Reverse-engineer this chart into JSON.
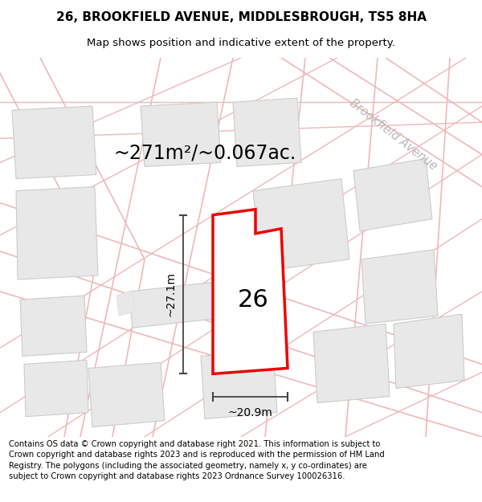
{
  "title_line1": "26, BROOKFIELD AVENUE, MIDDLESBROUGH, TS5 8HA",
  "title_line2": "Map shows position and indicative extent of the property.",
  "area_text": "~271m²/~0.067ac.",
  "label_26": "26",
  "dim_vertical": "~27.1m",
  "dim_horizontal": "~20.9m",
  "street_label": "Brookfield Avenue",
  "footer_text": "Contains OS data © Crown copyright and database right 2021. This information is subject to Crown copyright and database rights 2023 and is reproduced with the permission of HM Land Registry. The polygons (including the associated geometry, namely x, y co-ordinates) are subject to Crown copyright and database rights 2023 Ordnance Survey 100026316.",
  "bg_color": "#ffffff",
  "map_bg_color": "#ffffff",
  "building_fill": "#e8e8e8",
  "building_edge": "#cccccc",
  "highlight_fill": "#ffffff",
  "highlight_edge": "#ee0000",
  "road_line_color": "#f0b8b8",
  "street_label_color": "#b8b8b8",
  "dim_color": "#444444",
  "title_fontsize": 11,
  "subtitle_fontsize": 9.5,
  "area_fontsize": 17,
  "label_fontsize": 22,
  "dim_fontsize": 10,
  "street_fontsize": 10.5,
  "footer_fontsize": 7.2
}
